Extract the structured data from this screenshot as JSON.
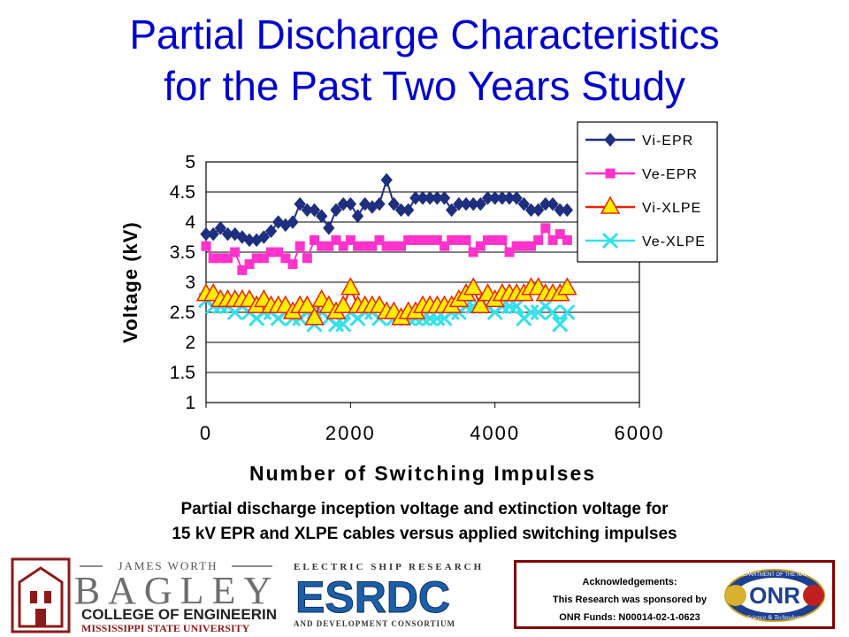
{
  "title_line1": "Partial Discharge Characteristics",
  "title_line2": "for the Past Two Years Study",
  "caption_line1": "Partial discharge inception voltage and extinction voltage for",
  "caption_line2": "15 kV EPR and XLPE cables versus applied switching impulses",
  "colors": {
    "title": "#0000cc",
    "vi_epr": "#1f2f7f",
    "ve_epr": "#ff33cc",
    "vi_xlpe": "#ee2200",
    "vi_xlpe_fill": "#ffee00",
    "ve_xlpe": "#33e0ee",
    "ack_border": "#800000"
  },
  "logos": {
    "bagley": {
      "line1": "JAMES WORTH",
      "line2": "BAGLEY",
      "line3": "COLLEGE OF ENGINEERING",
      "line4": "MISSISSIPPI STATE UNIVERSITY"
    },
    "esrdc": {
      "top": "ELECTRIC SHIP RESEARCH",
      "main": "ESRDC",
      "bottom": "AND DEVELOPMENT CONSORTIUM"
    },
    "onr": {
      "main": "ONR",
      "ring_text": "DEPARTMENT OF THE NAVY",
      "bottom": "Science & Technology"
    }
  },
  "acknowledgement": {
    "line1": "Acknowledgements:",
    "line2": "This Research was sponsored by",
    "line3": "ONR Funds: N00014-02-1-0623"
  },
  "chart_data": {
    "type": "line",
    "xlabel": "Number of Switching Impulses",
    "ylabel": "Voltage (kV)",
    "xlim": [
      0,
      6000
    ],
    "ylim": [
      1,
      5
    ],
    "xticks": [
      0,
      2000,
      4000,
      6000
    ],
    "yticks": [
      1,
      1.5,
      2,
      2.5,
      3,
      3.5,
      4,
      4.5,
      5
    ],
    "xtick_labels": [
      "0",
      "2000",
      "4000",
      "6000"
    ],
    "ytick_labels": [
      "1",
      "1.5",
      "2",
      "2.5",
      "3",
      "3.5",
      "4",
      "4.5",
      "5"
    ],
    "grid": "horizontal",
    "legend_position": "top-right",
    "x": [
      0,
      100,
      200,
      300,
      400,
      500,
      600,
      700,
      800,
      900,
      1000,
      1100,
      1200,
      1300,
      1400,
      1500,
      1600,
      1700,
      1800,
      1900,
      2000,
      2100,
      2200,
      2300,
      2400,
      2500,
      2600,
      2700,
      2800,
      2900,
      3000,
      3100,
      3200,
      3300,
      3400,
      3500,
      3600,
      3700,
      3800,
      3900,
      4000,
      4100,
      4200,
      4300,
      4400,
      4500,
      4600,
      4700,
      4800,
      4900,
      5000
    ],
    "series": [
      {
        "name": "Vi-EPR",
        "marker": "diamond",
        "values": [
          3.8,
          3.8,
          3.9,
          3.8,
          3.8,
          3.75,
          3.7,
          3.7,
          3.75,
          3.85,
          4.0,
          3.95,
          4.0,
          4.3,
          4.2,
          4.2,
          4.1,
          3.9,
          4.2,
          4.3,
          4.3,
          4.1,
          4.3,
          4.25,
          4.3,
          4.7,
          4.3,
          4.2,
          4.2,
          4.4,
          4.4,
          4.4,
          4.4,
          4.4,
          4.2,
          4.3,
          4.3,
          4.3,
          4.3,
          4.4,
          4.4,
          4.4,
          4.4,
          4.4,
          4.3,
          4.2,
          4.2,
          4.3,
          4.3,
          4.2,
          4.2
        ]
      },
      {
        "name": "Ve-EPR",
        "marker": "square",
        "values": [
          3.6,
          3.4,
          3.4,
          3.4,
          3.5,
          3.2,
          3.3,
          3.4,
          3.4,
          3.5,
          3.5,
          3.4,
          3.3,
          3.6,
          3.4,
          3.7,
          3.6,
          3.6,
          3.7,
          3.6,
          3.7,
          3.6,
          3.6,
          3.6,
          3.7,
          3.6,
          3.6,
          3.6,
          3.7,
          3.7,
          3.7,
          3.7,
          3.7,
          3.6,
          3.7,
          3.7,
          3.7,
          3.5,
          3.6,
          3.7,
          3.7,
          3.7,
          3.5,
          3.6,
          3.6,
          3.6,
          3.7,
          3.9,
          3.7,
          3.8,
          3.7
        ]
      },
      {
        "name": "Vi-XLPE",
        "marker": "triangle",
        "values": [
          2.8,
          2.8,
          2.7,
          2.7,
          2.7,
          2.7,
          2.7,
          2.6,
          2.7,
          2.6,
          2.6,
          2.6,
          2.5,
          2.6,
          2.6,
          2.4,
          2.7,
          2.6,
          2.5,
          2.6,
          2.9,
          2.6,
          2.6,
          2.6,
          2.6,
          2.5,
          2.5,
          2.4,
          2.5,
          2.5,
          2.6,
          2.6,
          2.6,
          2.6,
          2.6,
          2.7,
          2.8,
          2.9,
          2.6,
          2.8,
          2.7,
          2.8,
          2.8,
          2.8,
          2.8,
          2.9,
          2.9,
          2.8,
          2.8,
          2.8,
          2.9
        ]
      },
      {
        "name": "Ve-XLPE",
        "marker": "x",
        "values": [
          2.7,
          2.6,
          2.6,
          2.6,
          2.5,
          2.6,
          2.5,
          2.4,
          2.5,
          2.5,
          2.4,
          2.5,
          2.4,
          2.4,
          2.5,
          2.3,
          2.5,
          2.4,
          2.3,
          2.3,
          2.5,
          2.4,
          2.5,
          2.5,
          2.4,
          2.5,
          2.4,
          2.4,
          2.4,
          2.4,
          2.4,
          2.4,
          2.4,
          2.4,
          2.5,
          2.5,
          2.6,
          2.6,
          2.6,
          2.6,
          2.5,
          2.6,
          2.6,
          2.6,
          2.4,
          2.5,
          2.5,
          2.6,
          2.5,
          2.3,
          2.5
        ]
      }
    ]
  }
}
